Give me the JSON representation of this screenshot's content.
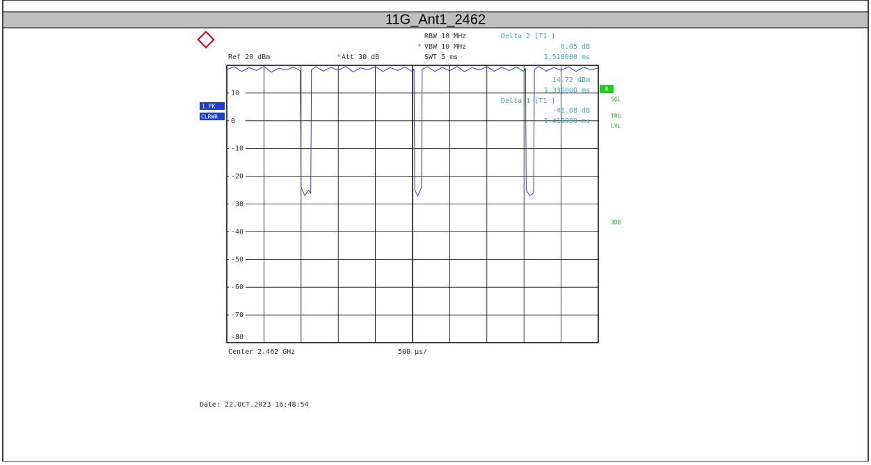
{
  "chart_data": {
    "type": "line",
    "title": "11G_Ant1_2462",
    "settings_left": [
      "Ref  20 dBm",
      "Att  30 dB"
    ],
    "settings_mid": [
      "RBW 10 MHz",
      "VBW 10 MHz",
      "SWT 5 ms"
    ],
    "marker_info": [
      "Delta 2 [T1 ]",
      "0.05 dB",
      "1.510000 ms",
      "14.72 dBm",
      "1.330000 ms",
      "Delta 1 [T1 ]",
      "-41.08 dB",
      "1.410000 ms"
    ],
    "side_left": [
      "1 PK",
      "CLRWR"
    ],
    "side_right": [
      "A",
      "SGL",
      "TRG",
      "LVL",
      "3DB"
    ],
    "x_label_left": "Center 2.462 GHz",
    "x_label_mid": "500 µs/",
    "date": "Date: 22.OCT.2023  16:48:54",
    "xlim": [
      0,
      5
    ],
    "ylim": [
      -80,
      20
    ],
    "yticks": [
      10,
      0,
      -10,
      -20,
      -30,
      -40,
      -50,
      -60,
      -70,
      -80
    ],
    "grid": true,
    "series": [
      {
        "name": "1 PK",
        "color": "#1f3fd8",
        "x": [
          0,
          0.1,
          0.2,
          0.3,
          0.4,
          0.5,
          0.6,
          0.7,
          0.8,
          0.9,
          0.99,
          1.0,
          1.05,
          1.1,
          1.13,
          1.14,
          1.2,
          1.3,
          1.4,
          1.5,
          1.6,
          1.7,
          1.8,
          1.9,
          2.0,
          2.1,
          2.2,
          2.3,
          2.4,
          2.5,
          2.52,
          2.53,
          2.57,
          2.62,
          2.63,
          2.7,
          2.8,
          2.9,
          3.0,
          3.1,
          3.2,
          3.3,
          3.4,
          3.5,
          3.6,
          3.7,
          3.8,
          3.9,
          4.0,
          4.02,
          4.03,
          4.08,
          4.13,
          4.14,
          4.2,
          4.3,
          4.4,
          4.5,
          4.6,
          4.7,
          4.8,
          4.9,
          5.0
        ],
        "values": [
          18.5,
          19.5,
          17.8,
          19.2,
          18.1,
          19.6,
          17.5,
          19.0,
          18.3,
          19.4,
          18.0,
          -24,
          -27,
          -25,
          -26,
          18.4,
          19.5,
          17.9,
          19.3,
          18.2,
          19.6,
          17.6,
          19.1,
          18.4,
          19.5,
          17.8,
          19.2,
          18.1,
          19.4,
          17.7,
          18.8,
          -25,
          -27,
          -24,
          18.6,
          19.5,
          17.8,
          19.3,
          18.0,
          19.6,
          17.7,
          19.2,
          18.3,
          19.5,
          17.9,
          19.3,
          18.1,
          19.4,
          17.8,
          18.9,
          -25,
          -27,
          -26,
          18.5,
          19.6,
          17.9,
          19.2,
          18.2,
          19.5,
          17.8,
          19.3,
          18.4,
          19.0
        ]
      }
    ]
  }
}
